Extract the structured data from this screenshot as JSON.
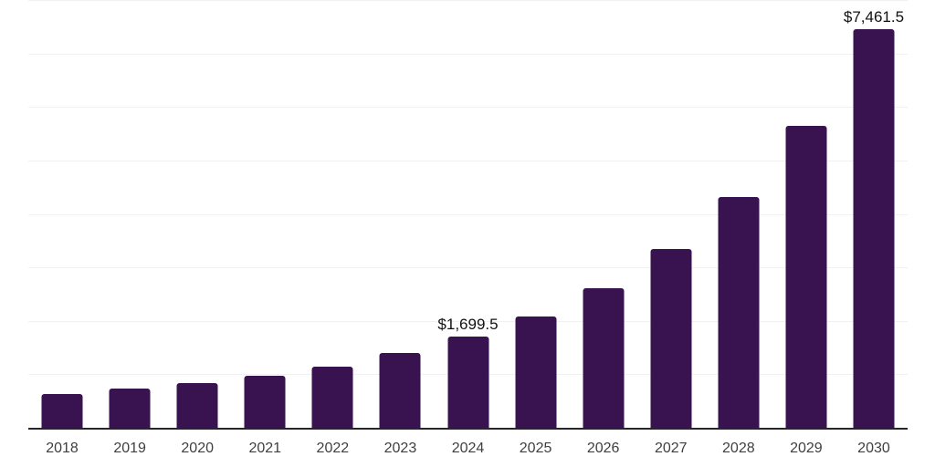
{
  "chart_data": {
    "type": "bar",
    "title": "",
    "xlabel": "",
    "ylabel": "",
    "categories": [
      "2018",
      "2019",
      "2020",
      "2021",
      "2022",
      "2023",
      "2024",
      "2025",
      "2026",
      "2027",
      "2028",
      "2029",
      "2030"
    ],
    "values": [
      640,
      742,
      845,
      981,
      1152,
      1407,
      1699.5,
      2090,
      2607,
      3336,
      4308,
      5640,
      7461.5
    ],
    "data_labels": [
      null,
      null,
      null,
      null,
      null,
      null,
      "$1,699.5",
      null,
      null,
      null,
      null,
      null,
      "$7,461.5"
    ],
    "ylim": [
      0,
      8000
    ],
    "gridline_step": 1000,
    "grid": "horizontal-only",
    "y_tick_labels_visible": false,
    "legend": "none",
    "colors": {
      "bar": "#38134f",
      "axis_line": "#262626",
      "gridline": "#f1f1f1",
      "tick_label": "#3f3f3f",
      "data_label": "#111111",
      "background": "#ffffff"
    }
  }
}
